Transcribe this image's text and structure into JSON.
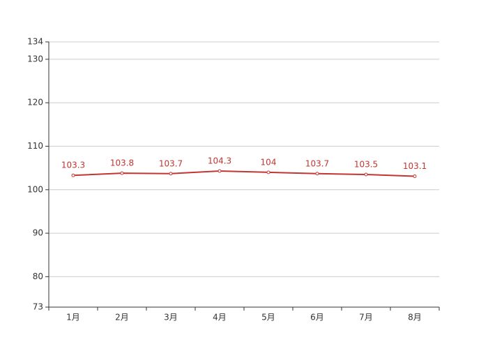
{
  "chart_data": {
    "type": "line",
    "categories": [
      "1月",
      "2月",
      "3月",
      "4月",
      "5月",
      "6月",
      "7月",
      "8月"
    ],
    "series": [
      {
        "color": "#c23531",
        "values": [
          103.3,
          103.8,
          103.7,
          104.3,
          104,
          103.7,
          103.5,
          103.1
        ]
      }
    ],
    "ylim": [
      73,
      134
    ],
    "yticks": [
      73,
      80,
      90,
      100,
      110,
      120,
      130,
      134
    ],
    "grid": true
  }
}
